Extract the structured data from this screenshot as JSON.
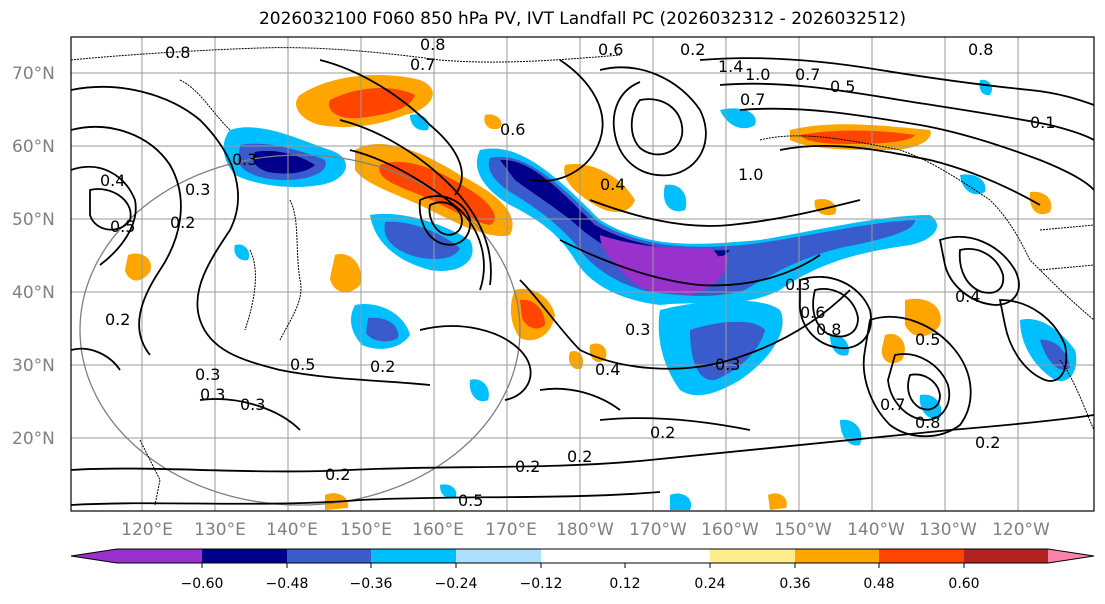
{
  "title": "2026032100 F060 850 hPa PV, IVT Landfall PC (2026032312 - 2026032512)",
  "lat_labels": [
    "70°N",
    "60°N",
    "50°N",
    "40°N",
    "30°N",
    "20°N"
  ],
  "lon_labels": [
    "120°E",
    "130°E",
    "140°E",
    "150°E",
    "160°E",
    "170°E",
    "180°W",
    "170°W",
    "160°W",
    "150°W",
    "140°W",
    "130°W",
    "120°W"
  ],
  "colorbar": {
    "ticks": [
      "−0.60",
      "−0.48",
      "−0.36",
      "−0.24",
      "−0.12",
      "0.12",
      "0.24",
      "0.36",
      "0.48",
      "0.60"
    ],
    "colors": [
      "#9932CC",
      "#00008B",
      "#3A5BCB",
      "#00BFFF",
      "#ADDFFF",
      "#FFFFFF",
      "#FFEC8B",
      "#FFA500",
      "#FF4500",
      "#B22222",
      "#FF82AB"
    ]
  },
  "contour_labels": [
    "0.8",
    "0.7",
    "0.8",
    "0.6",
    "0.2",
    "1.4",
    "1.0",
    "0.7",
    "0.5",
    "0.8",
    "0.1",
    "0.7",
    "1.0",
    "0.4",
    "0.3",
    "0.6",
    "0.2",
    "0.3",
    "0.4",
    "0.5",
    "0.3",
    "0.3",
    "0.8",
    "0.6",
    "0.5",
    "0.4",
    "0.2",
    "0.5",
    "0.3",
    "0.3",
    "0.2",
    "0.3",
    "0.4",
    "0.3",
    "0.2",
    "0.7",
    "0.8",
    "0.2",
    "0.2",
    "0.2",
    "0.2",
    "0.5"
  ]
}
